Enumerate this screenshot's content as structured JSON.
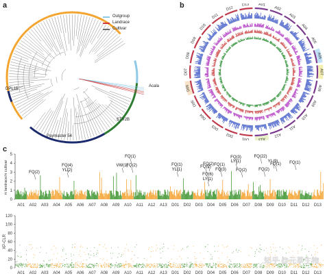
{
  "panels": {
    "a": "a",
    "b": "b",
    "c": "c"
  },
  "legend": [
    {
      "label": "Outgroup",
      "color": "#8ec9e8"
    },
    {
      "label": "Landrace",
      "color": "#d03a3a"
    },
    {
      "label": "Cultivar",
      "color": "#6a6a6a"
    }
  ],
  "tree_labels": {
    "dpl": "DPL15",
    "acala": "Acala",
    "stv": "STV2B",
    "paymaster": "Paymaster 54"
  },
  "circos_labels": [
    "A01",
    "A02",
    "A03",
    "A04",
    "A05",
    "A06",
    "A07",
    "A08",
    "A09",
    "A10",
    "A11",
    "A12",
    "A13",
    "D01",
    "D02",
    "D03",
    "D04",
    "D05",
    "D06",
    "D07",
    "D08",
    "D09",
    "D10",
    "D11",
    "D12",
    "D13"
  ],
  "chromosomes": [
    "A01",
    "A02",
    "A03",
    "A04",
    "A05",
    "A06",
    "A07",
    "A08",
    "A09",
    "A10",
    "A11",
    "A12",
    "A13",
    "D01",
    "D02",
    "D03",
    "D04",
    "D05",
    "D06",
    "D07",
    "D08",
    "D09",
    "D10",
    "D11",
    "D12",
    "D13"
  ],
  "top_plot": {
    "ylabel": "π landrace/π cultivar",
    "yticks": [
      "0",
      "1",
      "2",
      "3",
      "4",
      "5"
    ],
    "annotations": [
      "FQ(2)",
      "FQ(4)",
      "YL(2)",
      "VW(1)",
      "FQ(1)",
      "FQ(2)",
      "FQ(1)",
      "YL(1)",
      "FQ(6)",
      "LY(1)",
      "FQ(2)",
      "FQ(1)",
      "FQ(3)",
      "FQ(3)",
      "LY(1)",
      "FQ(2)",
      "FQ(2)",
      "FQ(22)",
      "YL(9)",
      "FQ(1)",
      "FQ(1)",
      "FQ(2)"
    ]
  },
  "bottom_plot": {
    "ylabel": "XP-CLR",
    "yticks": [
      "0",
      "20",
      "40",
      "60",
      "80",
      "100",
      "120"
    ]
  },
  "colors": {
    "green": "#2e8b1e",
    "orange": "#f39a1c",
    "cultivar_ring": "#f3a530",
    "landrace_ring": "#2e7d32"
  },
  "watermark": "知乎 @元莘生物"
}
